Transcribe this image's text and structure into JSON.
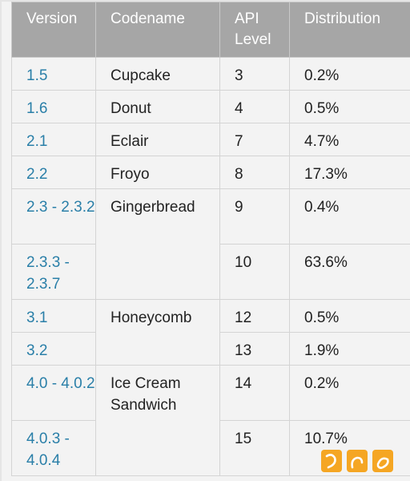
{
  "table": {
    "headers": {
      "version": "Version",
      "codename": "Codename",
      "api_level": "API Level",
      "distribution": "Distribution"
    },
    "rows": [
      {
        "version": "1.5",
        "codename": "Cupcake",
        "api": "3",
        "dist": "0.2%"
      },
      {
        "version": "1.6",
        "codename": "Donut",
        "api": "4",
        "dist": "0.5%"
      },
      {
        "version": "2.1",
        "codename": "Eclair",
        "api": "7",
        "dist": "4.7%"
      },
      {
        "version": "2.2",
        "codename": "Froyo",
        "api": "8",
        "dist": "17.3%"
      },
      {
        "version": "2.3 - 2.3.2",
        "codename": "Gingerbread",
        "api": "9",
        "dist": "0.4%"
      },
      {
        "version": "2.3.3 - 2.3.7",
        "api": "10",
        "dist": "63.6%"
      },
      {
        "version": "3.1",
        "codename": "Honeycomb",
        "api": "12",
        "dist": "0.5%"
      },
      {
        "version": "3.2",
        "api": "13",
        "dist": "1.9%"
      },
      {
        "version": "4.0 - 4.0.2",
        "codename": "Ice Cream Sandwich",
        "api": "14",
        "dist": "0.2%"
      },
      {
        "version": "4.0.3 - 4.0.4",
        "api": "15",
        "dist": "10.7%"
      }
    ]
  },
  "colors": {
    "header_bg": "#a6a6a6",
    "version_link": "#2a7fa8",
    "logo_orange": "#f5a623"
  },
  "watermark": {
    "icon": "watermark-logo-icon"
  }
}
